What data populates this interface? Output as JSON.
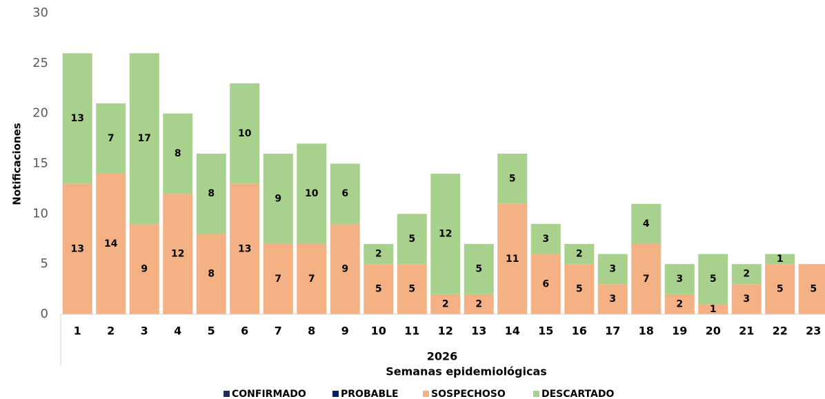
{
  "chart_data": {
    "type": "stacked_bar",
    "x_label_group": "2026",
    "x_label": "Semanas epidemiológicas",
    "y_label": "Notificaciones",
    "categories": [
      "1",
      "2",
      "3",
      "4",
      "5",
      "6",
      "7",
      "8",
      "9",
      "10",
      "11",
      "12",
      "13",
      "14",
      "15",
      "16",
      "17",
      "18",
      "19",
      "20",
      "21",
      "22",
      "23"
    ],
    "series": [
      {
        "name": "CONFIRMADO",
        "color": "#1f2d5c",
        "values": [
          0,
          0,
          0,
          0,
          0,
          0,
          0,
          0,
          0,
          0,
          0,
          0,
          0,
          0,
          0,
          0,
          0,
          0,
          0,
          0,
          0,
          0,
          0
        ]
      },
      {
        "name": "PROBABLE",
        "color": "#0a1f5c",
        "values": [
          0,
          0,
          0,
          0,
          0,
          0,
          0,
          0,
          0,
          0,
          0,
          0,
          0,
          0,
          0,
          0,
          0,
          0,
          0,
          0,
          0,
          0,
          0
        ]
      },
      {
        "name": "SOSPECHOSO",
        "color": "#f4b183",
        "values": [
          13,
          14,
          9,
          12,
          8,
          13,
          7,
          7,
          9,
          5,
          5,
          2,
          2,
          11,
          6,
          5,
          3,
          7,
          2,
          1,
          3,
          5,
          5
        ]
      },
      {
        "name": "DESCARTADO",
        "color": "#a9d18e",
        "values": [
          13,
          7,
          17,
          8,
          8,
          10,
          9,
          10,
          6,
          2,
          5,
          12,
          5,
          5,
          3,
          2,
          3,
          4,
          3,
          5,
          2,
          1,
          null
        ]
      }
    ],
    "ylim": [
      0,
      30
    ],
    "yticks": [
      0,
      5,
      10,
      15,
      20,
      25,
      30
    ],
    "grid": false
  }
}
